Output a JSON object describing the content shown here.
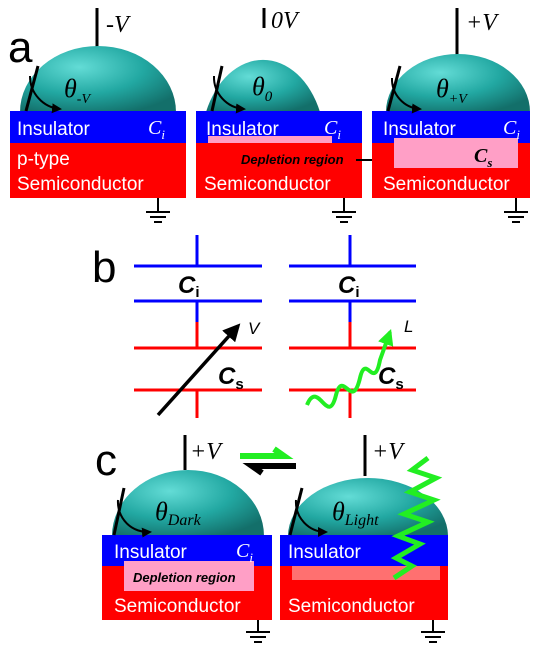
{
  "panels": {
    "a": {
      "label": "a",
      "devices": [
        {
          "voltage": "-V",
          "theta_main": "θ",
          "theta_sub": "-V",
          "insulator": "Insulator",
          "cap": "C",
          "cap_sub": "i",
          "semi_line1": "p-type",
          "semi_line2": "Semiconductor"
        },
        {
          "voltage": "0V",
          "theta_main": "θ",
          "theta_sub": "0",
          "insulator": "Insulator",
          "cap": "C",
          "cap_sub": "i",
          "semi_line2": "Semiconductor"
        },
        {
          "voltage": "+V",
          "theta_main": "θ",
          "theta_sub": "+V",
          "insulator": "Insulator",
          "cap": "C",
          "cap_sub": "i",
          "cs": "C",
          "cs_sub": "s",
          "semi_line2": "Semiconductor"
        }
      ],
      "depletion_label": "Depletion region"
    },
    "b": {
      "label": "b",
      "left": {
        "ci": "C",
        "ci_sub": "i",
        "cs": "C",
        "cs_sub": "s",
        "arrow_label": "V"
      },
      "right": {
        "ci": "C",
        "ci_sub": "i",
        "cs": "C",
        "cs_sub": "s",
        "arrow_label": "L"
      }
    },
    "c": {
      "label": "c",
      "devices": [
        {
          "voltage": "+V",
          "theta_main": "θ",
          "theta_sub": "Dark",
          "insulator": "Insulator",
          "cap": "C",
          "cap_sub": "i",
          "depletion": "Depletion region",
          "semi": "Semiconductor"
        },
        {
          "voltage": "+V",
          "theta_main": "θ",
          "theta_sub": "Light",
          "insulator": "Insulator",
          "semi": "Semiconductor"
        }
      ]
    }
  },
  "colors": {
    "droplet": "#1fa6a0",
    "insulator": "#0000ff",
    "semiconductor": "#ff0000",
    "depletion": "#ff9fc6",
    "light": "#22ee22"
  }
}
